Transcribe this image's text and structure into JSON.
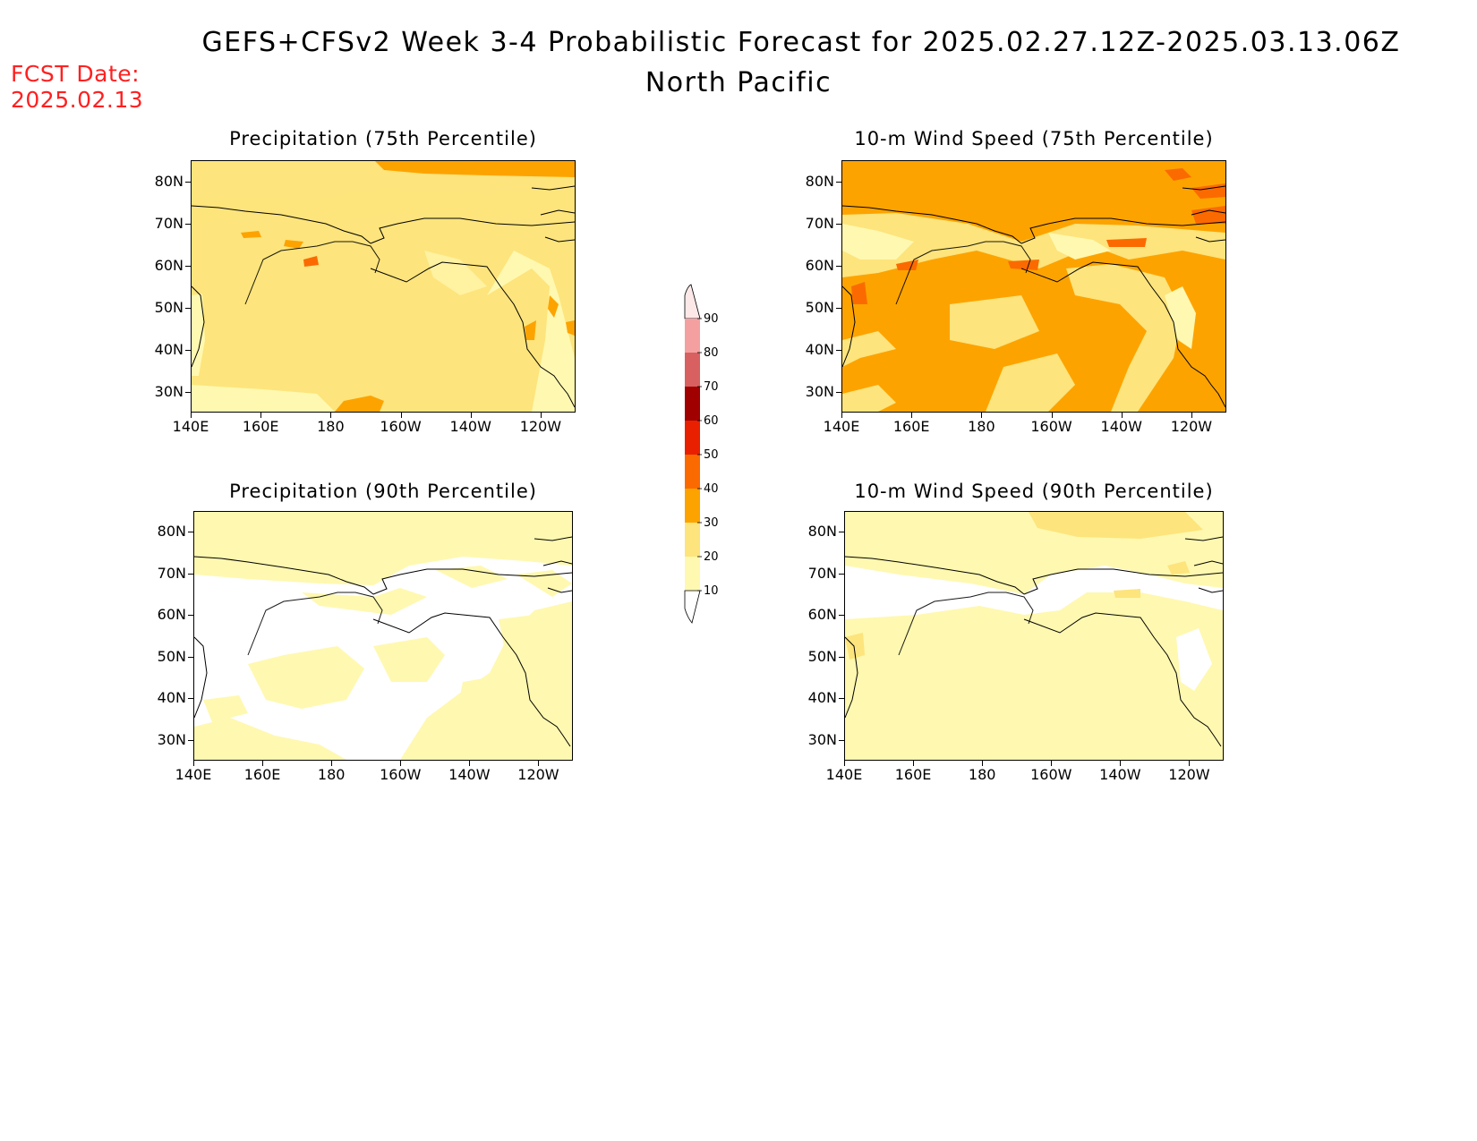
{
  "title": "GEFS+CFSv2 Week 3-4 Probabilistic Forecast for 2025.02.27.12Z-2025.03.13.06Z",
  "subtitle": "North Pacific",
  "fcst_date_label": "FCST Date:",
  "fcst_date_value": "2025.02.13",
  "colors": {
    "c10": "#fff8b0",
    "c20": "#fde47c",
    "c30": "#fda300",
    "c40": "#fb6a00",
    "c50": "#e82000",
    "c60": "#a00000",
    "c70": "#d86060",
    "c80": "#f5a0a0",
    "c90": "#fde8e8"
  },
  "colorbar": {
    "levels": [
      "90",
      "80",
      "70",
      "60",
      "50",
      "40",
      "30",
      "20",
      "10"
    ]
  },
  "axes": {
    "lat_ticks": [
      "80N",
      "70N",
      "60N",
      "50N",
      "40N",
      "30N"
    ],
    "lon_ticks": [
      "140E",
      "160E",
      "180",
      "160W",
      "140W",
      "120W"
    ]
  },
  "panels": [
    {
      "id": "precip75",
      "title": "Precipitation (75th Percentile)",
      "background_class": "20-30",
      "dominant_fill": "c20"
    },
    {
      "id": "wind75",
      "title": "10-m Wind Speed (75th Percentile)",
      "background_class": "30-40",
      "dominant_fill": "c30"
    },
    {
      "id": "precip90",
      "title": "Precipitation (90th Percentile)",
      "background_class": "10-20",
      "dominant_fill": "c10"
    },
    {
      "id": "wind90",
      "title": "10-m Wind Speed (90th Percentile)",
      "background_class": "10-20",
      "dominant_fill": "c10"
    }
  ]
}
